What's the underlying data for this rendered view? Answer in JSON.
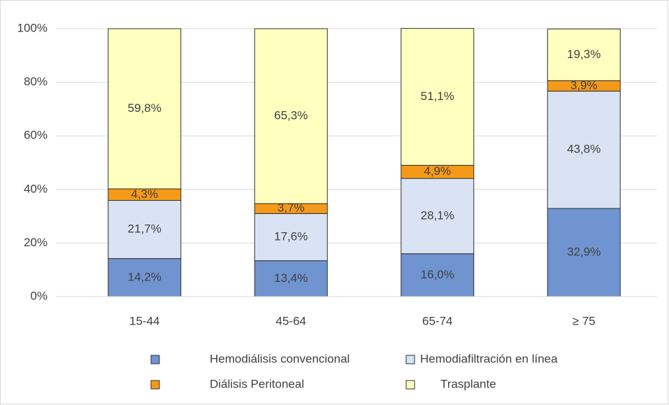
{
  "chart_data": {
    "type": "stacked_bar",
    "categories": [
      "15-44",
      "45-64",
      "65-74",
      "≥ 75"
    ],
    "series": [
      {
        "name": "Hemodiálisis convencional",
        "color": "#7094d0",
        "values": [
          14.2,
          13.4,
          16.0,
          32.9
        ],
        "value_labels": [
          "14,2%",
          "13,4%",
          "16,0%",
          "32,9%"
        ]
      },
      {
        "name": "Hemodiafiltración en línea",
        "color": "#dae3f3",
        "values": [
          21.7,
          17.6,
          28.1,
          43.8
        ],
        "value_labels": [
          "21,7%",
          "17,6%",
          "28,1%",
          "43,8%"
        ]
      },
      {
        "name": "Diálisis Peritoneal",
        "color": "#f59a18",
        "values": [
          4.3,
          3.7,
          4.9,
          3.9
        ],
        "value_labels": [
          "4,3%",
          "3,7%",
          "4,9%",
          "3,9%"
        ]
      },
      {
        "name": "Trasplante",
        "color": "#ffffc0",
        "values": [
          59.8,
          65.3,
          51.1,
          19.3
        ],
        "value_labels": [
          "59,8%",
          "65,3%",
          "51,1%",
          "19,3%"
        ]
      }
    ],
    "ylim": [
      0,
      100
    ],
    "yticks": [
      {
        "value": 0,
        "label": "0%"
      },
      {
        "value": 20,
        "label": "20%"
      },
      {
        "value": 40,
        "label": "40%"
      },
      {
        "value": 60,
        "label": "60%"
      },
      {
        "value": 80,
        "label": "80%"
      },
      {
        "value": 100,
        "label": "100%"
      }
    ],
    "grid": true,
    "legend": "bottom"
  }
}
